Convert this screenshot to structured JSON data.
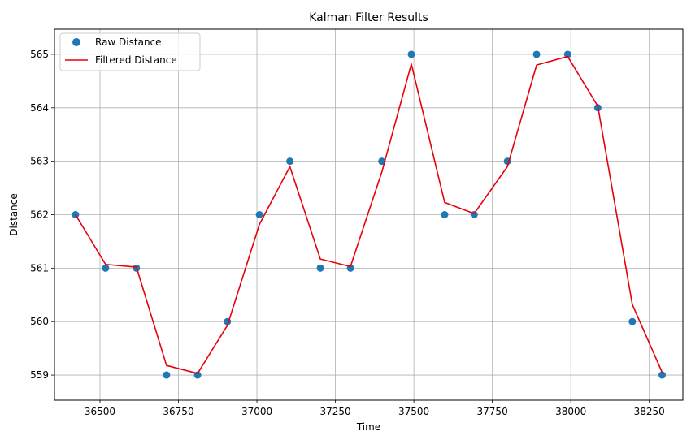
{
  "chart_data": {
    "type": "line",
    "title": "Kalman Filter Results",
    "xlabel": "Time",
    "ylabel": "Distance",
    "xlim": [
      36355,
      38357
    ],
    "ylim": [
      558.53,
      565.47
    ],
    "xticks": [
      36500,
      36750,
      37000,
      37250,
      37500,
      37750,
      38000,
      38250
    ],
    "yticks": [
      559,
      560,
      561,
      562,
      563,
      564,
      565
    ],
    "grid": true,
    "legend_position": "top-left",
    "series": [
      {
        "name": "Raw Distance",
        "kind": "scatter",
        "color": "#1f77b4",
        "x": [
          36422,
          36518,
          36616,
          36712,
          36811,
          36906,
          37008,
          37105,
          37202,
          37298,
          37398,
          37492,
          37598,
          37692,
          37798,
          37891,
          37990,
          38086,
          38196,
          38291
        ],
        "y": [
          562,
          561,
          561,
          559,
          559,
          560,
          562,
          563,
          561,
          561,
          563,
          565,
          562,
          562,
          563,
          565,
          565,
          564,
          560,
          559
        ]
      },
      {
        "name": "Filtered Distance",
        "kind": "line",
        "color": "#e8000b",
        "x": [
          36422,
          36518,
          36616,
          36712,
          36811,
          36906,
          37008,
          37105,
          37202,
          37298,
          37398,
          37492,
          37598,
          37692,
          37798,
          37891,
          37990,
          38086,
          38196,
          38291
        ],
        "y": [
          562.0,
          561.07,
          561.02,
          559.18,
          559.03,
          559.93,
          561.82,
          562.9,
          561.17,
          561.03,
          562.8,
          564.82,
          562.23,
          562.02,
          562.9,
          564.8,
          564.96,
          564.03,
          560.32,
          559.05
        ]
      }
    ]
  }
}
